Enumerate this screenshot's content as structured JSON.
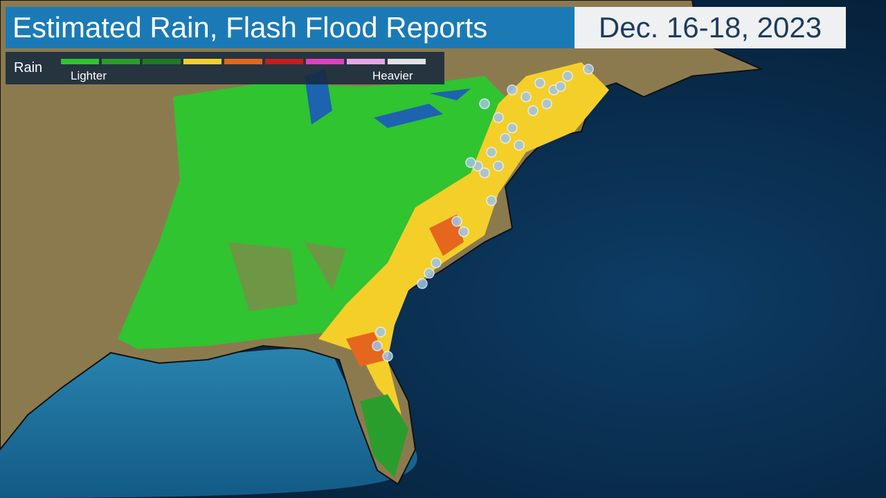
{
  "header": {
    "title": "Estimated Rain, Flash Flood Reports",
    "date": "Dec. 16-18, 2023"
  },
  "legend": {
    "label": "Rain",
    "low": "Lighter",
    "high": "Heavier",
    "colors": [
      "#2fc430",
      "#2a9e2c",
      "#1f7a24",
      "#f4cf2a",
      "#e5661c",
      "#c81d1d",
      "#e03fc2",
      "#e7a6e4",
      "#e2e2e2"
    ]
  }
}
